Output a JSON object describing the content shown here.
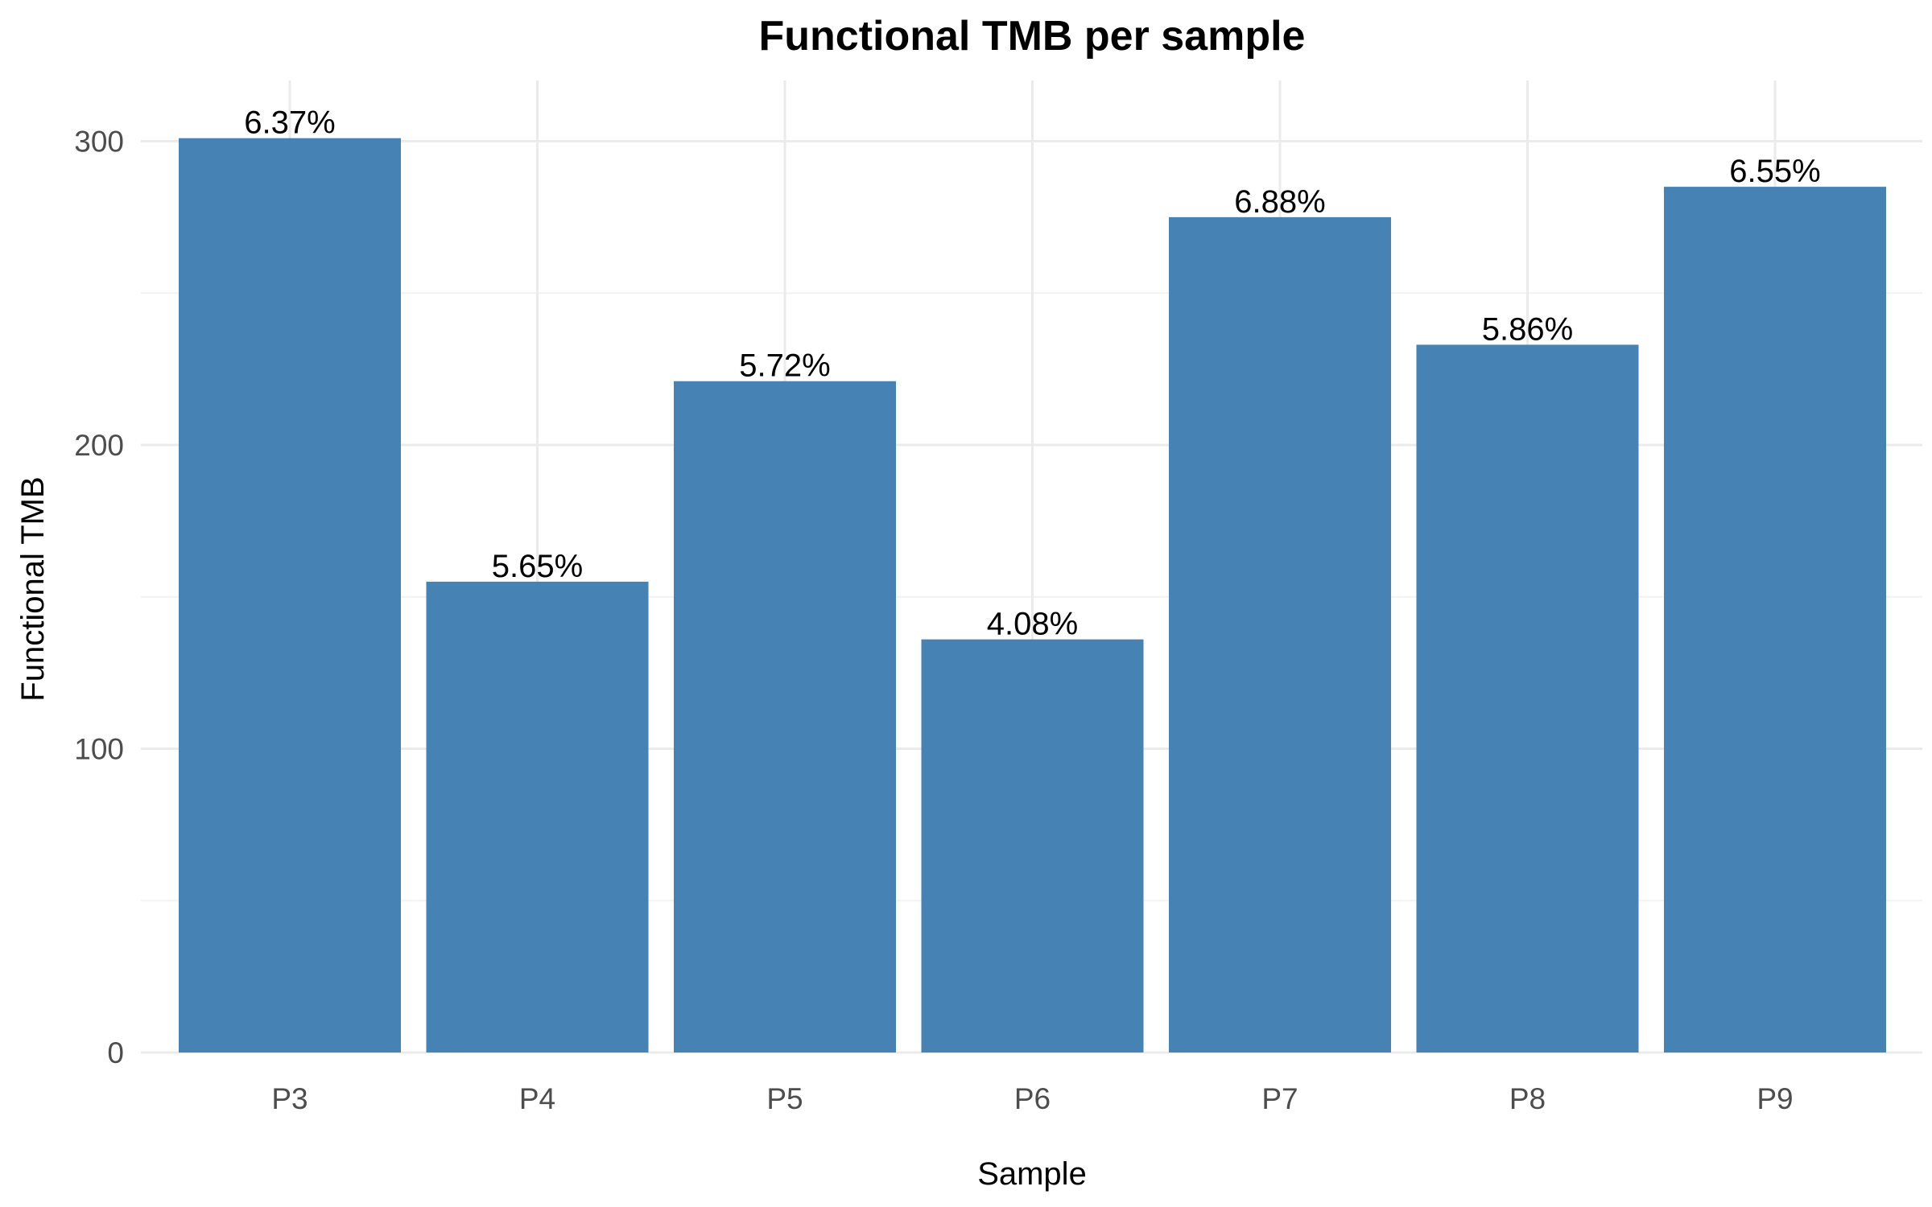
{
  "chart_data": {
    "type": "bar",
    "title": "Functional TMB per sample",
    "xlabel": "Sample",
    "ylabel": "Functional TMB",
    "categories": [
      "P3",
      "P4",
      "P5",
      "P6",
      "P7",
      "P8",
      "P9"
    ],
    "values": [
      301,
      155,
      221,
      136,
      275,
      233,
      285
    ],
    "data_labels": [
      "6.37%",
      "5.65%",
      "5.72%",
      "4.08%",
      "6.88%",
      "5.86%",
      "6.55%"
    ],
    "ylim": [
      0,
      320
    ],
    "yticks": [
      0,
      100,
      200,
      300
    ],
    "y_minor_ticks": [
      50,
      150,
      250
    ],
    "grid": true,
    "legend": "none",
    "bar_color": "#4682b4"
  }
}
